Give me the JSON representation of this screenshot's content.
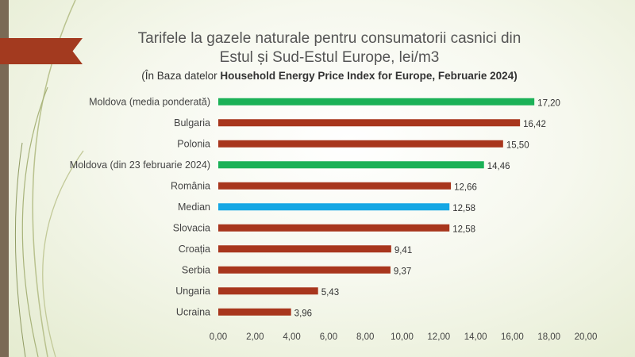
{
  "colors": {
    "green": "#1bb157",
    "red": "#a8361d",
    "blue": "#15a7e4"
  },
  "chart_data": {
    "type": "bar",
    "orientation": "horizontal",
    "title_line1": "Tarifele la gazele naturale pentru consumatorii casnici din",
    "title_line2": "Estul și Sud-Estul Europe, lei/m3",
    "subtitle_prefix": "(În Baza datelor ",
    "subtitle_bold": "Household Energy Price Index for Europe, Februarie 2024)",
    "categories": [
      "Moldova (media ponderată)",
      "Bulgaria",
      "Polonia",
      "Moldova (din 23 februarie 2024)",
      "România",
      "Median",
      "Slovacia",
      "Croația",
      "Serbia",
      "Ungaria",
      "Ucraina"
    ],
    "values": [
      17.2,
      16.42,
      15.5,
      14.46,
      12.66,
      12.58,
      12.58,
      9.41,
      9.37,
      5.43,
      3.96
    ],
    "value_labels": [
      "17,20",
      "16,42",
      "15,50",
      "14,46",
      "12,66",
      "12,58",
      "12,58",
      "9,41",
      "9,37",
      "5,43",
      "3,96"
    ],
    "bar_colors": [
      "green",
      "red",
      "red",
      "green",
      "red",
      "blue",
      "red",
      "red",
      "red",
      "red",
      "red"
    ],
    "xlim": [
      0,
      20
    ],
    "ticks": [
      "0,00",
      "2,00",
      "4,00",
      "6,00",
      "8,00",
      "10,00",
      "12,00",
      "14,00",
      "16,00",
      "18,00",
      "20,00"
    ],
    "grid": false
  }
}
